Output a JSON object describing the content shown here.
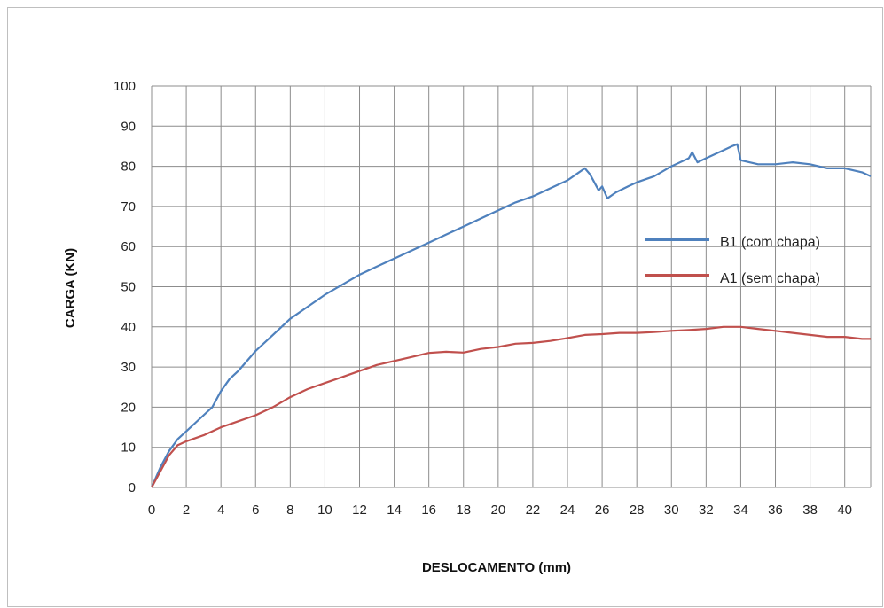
{
  "chart_data": {
    "type": "line",
    "title": "",
    "xlabel": "DESLOCAMENTO (mm)",
    "ylabel": "CARGA (KN)",
    "xlim": [
      0,
      41.5
    ],
    "ylim": [
      0,
      100
    ],
    "x_ticks": [
      0,
      2,
      4,
      6,
      8,
      10,
      12,
      14,
      16,
      18,
      20,
      22,
      24,
      26,
      28,
      30,
      32,
      34,
      36,
      38,
      40
    ],
    "y_ticks": [
      0,
      10,
      20,
      30,
      40,
      50,
      60,
      70,
      80,
      90,
      100
    ],
    "grid": true,
    "legend_position": "right",
    "series": [
      {
        "name": "B1 (com chapa)",
        "color": "#4f81bd",
        "x": [
          0,
          0.5,
          1,
          1.5,
          2,
          2.5,
          3,
          3.5,
          4,
          4.5,
          5,
          6,
          7,
          8,
          9,
          10,
          11,
          12,
          13,
          14,
          15,
          16,
          17,
          18,
          19,
          20,
          21,
          22,
          23,
          24,
          24.5,
          25,
          25.3,
          25.8,
          26,
          26.3,
          26.8,
          27.5,
          28,
          29,
          30,
          31,
          31.2,
          31.5,
          32,
          33,
          33.5,
          33.8,
          34,
          35,
          36,
          37,
          38,
          39,
          40,
          41,
          41.5
        ],
        "y": [
          0,
          5,
          9,
          12,
          14,
          16,
          18,
          20,
          24,
          27,
          29,
          34,
          38,
          42,
          45,
          48,
          50.5,
          53,
          55,
          57,
          59,
          61,
          63,
          65,
          67,
          69,
          71,
          72.5,
          74.5,
          76.5,
          78,
          79.5,
          78,
          74,
          75,
          72,
          73.5,
          75,
          76,
          77.5,
          80,
          82,
          83.5,
          81,
          82,
          84,
          85,
          85.5,
          81.5,
          80.5,
          80.5,
          81,
          80.5,
          79.5,
          79.5,
          78.5,
          77.5
        ]
      },
      {
        "name": "A1 (sem chapa)",
        "color": "#c0504d",
        "x": [
          0,
          0.5,
          1,
          1.5,
          2,
          3,
          4,
          5,
          6,
          7,
          8,
          9,
          10,
          11,
          12,
          13,
          14,
          15,
          16,
          17,
          18,
          19,
          20,
          21,
          22,
          23,
          24,
          25,
          26,
          27,
          28,
          29,
          30,
          31,
          32,
          33,
          34,
          35,
          36,
          37,
          38,
          39,
          40,
          41,
          41.5
        ],
        "y": [
          0,
          4,
          8,
          10.5,
          11.5,
          13,
          15,
          16.5,
          18,
          20,
          22.5,
          24.5,
          26,
          27.5,
          29,
          30.5,
          31.5,
          32.5,
          33.5,
          33.8,
          33.6,
          34.5,
          35,
          35.8,
          36,
          36.5,
          37.2,
          38,
          38.2,
          38.5,
          38.5,
          38.7,
          39,
          39.2,
          39.5,
          40,
          40,
          39.5,
          39,
          38.5,
          38,
          37.5,
          37.5,
          37,
          37
        ]
      }
    ]
  }
}
